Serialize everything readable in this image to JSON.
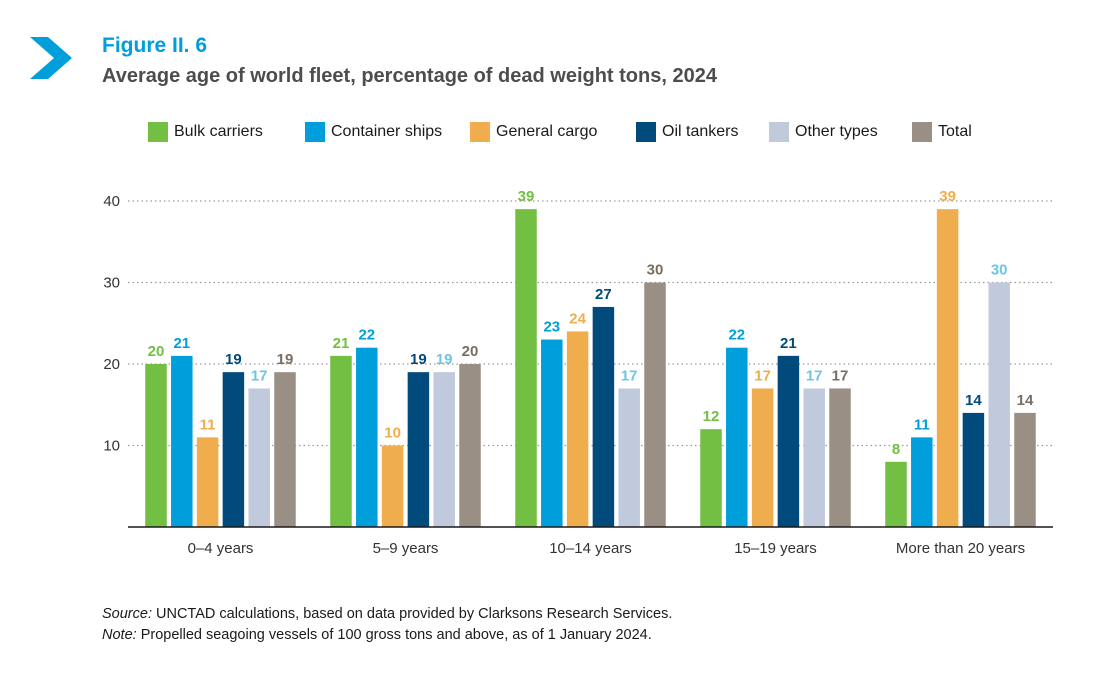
{
  "header": {
    "figure_label": "Figure II. 6",
    "title": "Average age of world fleet, percentage of dead weight tons, 2024"
  },
  "footer": {
    "source_prefix": "Source:",
    "source_text": " UNCTAD calculations, based on data provided by Clarksons Research Services.",
    "note_prefix": "Note:",
    "note_text": " Propelled seagoing vessels of 100 gross tons and above, as of 1 January 2024."
  },
  "colors": {
    "accent": "#009edb",
    "title": "#4d4d4d",
    "grid": "#9a9a9a",
    "axis": "#1a1a1a"
  },
  "chart_data": {
    "type": "bar",
    "categories": [
      "0–4 years",
      "5–9 years",
      "10–14 years",
      "15–19 years",
      "More than 20 years"
    ],
    "series": [
      {
        "name": "Bulk carriers",
        "color": "#72bf44",
        "values": [
          20,
          21,
          39,
          12,
          8
        ]
      },
      {
        "name": "Container ships",
        "color": "#009edb",
        "values": [
          21,
          22,
          23,
          22,
          11
        ]
      },
      {
        "name": "General cargo",
        "color": "#f0ad4e",
        "values": [
          11,
          10,
          24,
          17,
          39
        ]
      },
      {
        "name": "Oil tankers",
        "color": "#004a7c",
        "values": [
          19,
          19,
          27,
          21,
          14
        ]
      },
      {
        "name": "Other types",
        "color": "#c1c9dd",
        "label_color": "#6cc5e9",
        "values": [
          17,
          19,
          17,
          17,
          30
        ]
      },
      {
        "name": "Total",
        "color": "#9a8f84",
        "label_color": "#7a6e63",
        "values": [
          19,
          20,
          30,
          17,
          14
        ]
      }
    ],
    "yticks": [
      10,
      20,
      30,
      40
    ],
    "ylim": [
      0,
      40
    ],
    "grid": true,
    "legend_position": "top",
    "data_labels": true
  }
}
